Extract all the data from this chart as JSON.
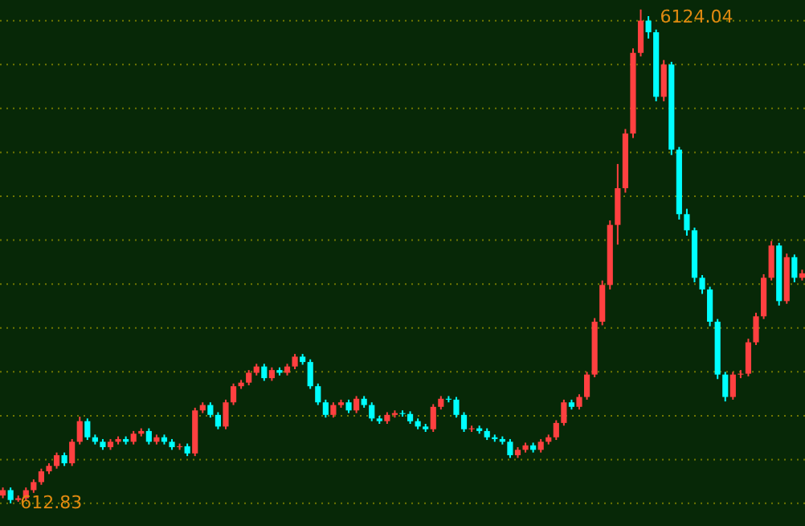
{
  "chart_data": {
    "type": "candlestick",
    "categories": [
      null,
      null,
      null,
      null,
      null,
      null,
      null,
      null,
      null,
      null,
      null,
      null,
      null,
      null,
      null,
      null,
      null,
      null,
      null,
      null,
      null,
      null,
      null,
      null,
      null,
      null,
      null,
      null,
      null,
      null,
      null,
      null,
      null,
      null,
      null,
      null,
      null,
      null,
      null,
      null,
      null,
      null,
      null,
      null,
      null,
      null,
      null,
      null,
      null,
      null,
      null,
      null,
      null,
      null,
      null,
      null,
      null,
      null,
      null,
      null,
      null,
      null,
      null,
      null,
      null,
      null,
      null,
      null,
      null,
      null,
      null,
      null,
      null,
      null,
      null,
      null,
      null,
      null,
      null,
      null,
      null,
      null,
      null,
      null,
      null,
      null,
      null,
      null,
      null,
      null,
      null,
      null,
      null,
      null,
      null,
      null,
      null,
      null,
      null,
      null,
      null,
      null,
      null,
      null,
      null
    ],
    "ohlc": [
      [
        700,
        790,
        670,
        760
      ],
      [
        760,
        790,
        612.83,
        650
      ],
      [
        650,
        700,
        630,
        670
      ],
      [
        670,
        790,
        640,
        760
      ],
      [
        760,
        880,
        730,
        850
      ],
      [
        850,
        1000,
        820,
        970
      ],
      [
        970,
        1060,
        940,
        1030
      ],
      [
        1030,
        1180,
        1000,
        1150
      ],
      [
        1150,
        1180,
        1030,
        1060
      ],
      [
        1060,
        1330,
        1030,
        1300
      ],
      [
        1300,
        1580,
        1270,
        1530
      ],
      [
        1530,
        1560,
        1320,
        1350
      ],
      [
        1350,
        1380,
        1270,
        1300
      ],
      [
        1300,
        1330,
        1210,
        1240
      ],
      [
        1240,
        1330,
        1210,
        1300
      ],
      [
        1300,
        1360,
        1270,
        1330
      ],
      [
        1330,
        1360,
        1270,
        1300
      ],
      [
        1300,
        1420,
        1270,
        1390
      ],
      [
        1390,
        1450,
        1360,
        1420
      ],
      [
        1420,
        1450,
        1270,
        1300
      ],
      [
        1300,
        1380,
        1270,
        1350
      ],
      [
        1350,
        1380,
        1270,
        1300
      ],
      [
        1300,
        1330,
        1210,
        1240
      ],
      [
        1240,
        1280,
        1210,
        1250
      ],
      [
        1250,
        1280,
        1140,
        1170
      ],
      [
        1170,
        1680,
        1140,
        1650
      ],
      [
        1650,
        1740,
        1620,
        1710
      ],
      [
        1710,
        1740,
        1570,
        1600
      ],
      [
        1600,
        1630,
        1440,
        1470
      ],
      [
        1470,
        1770,
        1440,
        1740
      ],
      [
        1740,
        1950,
        1710,
        1920
      ],
      [
        1920,
        1990,
        1890,
        1960
      ],
      [
        1960,
        2100,
        1930,
        2070
      ],
      [
        2070,
        2170,
        2040,
        2140
      ],
      [
        2140,
        2170,
        1980,
        2010
      ],
      [
        2010,
        2130,
        1980,
        2100
      ],
      [
        2100,
        2130,
        2040,
        2070
      ],
      [
        2070,
        2170,
        2040,
        2140
      ],
      [
        2140,
        2280,
        2110,
        2250
      ],
      [
        2250,
        2280,
        2160,
        2190
      ],
      [
        2190,
        2220,
        1890,
        1920
      ],
      [
        1920,
        1950,
        1710,
        1740
      ],
      [
        1740,
        1770,
        1570,
        1600
      ],
      [
        1600,
        1740,
        1570,
        1710
      ],
      [
        1710,
        1770,
        1680,
        1740
      ],
      [
        1740,
        1770,
        1620,
        1650
      ],
      [
        1650,
        1810,
        1620,
        1780
      ],
      [
        1780,
        1810,
        1680,
        1710
      ],
      [
        1710,
        1740,
        1530,
        1560
      ],
      [
        1560,
        1590,
        1500,
        1530
      ],
      [
        1530,
        1630,
        1500,
        1600
      ],
      [
        1600,
        1650,
        1570,
        1620
      ],
      [
        1620,
        1650,
        1580,
        1610
      ],
      [
        1610,
        1640,
        1500,
        1530
      ],
      [
        1530,
        1560,
        1440,
        1470
      ],
      [
        1470,
        1500,
        1410,
        1440
      ],
      [
        1440,
        1720,
        1410,
        1690
      ],
      [
        1690,
        1810,
        1660,
        1780
      ],
      [
        1780,
        1810,
        1740,
        1770
      ],
      [
        1770,
        1800,
        1570,
        1600
      ],
      [
        1600,
        1630,
        1410,
        1440
      ],
      [
        1440,
        1480,
        1410,
        1450
      ],
      [
        1450,
        1480,
        1390,
        1420
      ],
      [
        1420,
        1450,
        1320,
        1350
      ],
      [
        1350,
        1380,
        1300,
        1330
      ],
      [
        1330,
        1360,
        1270,
        1300
      ],
      [
        1300,
        1330,
        1120,
        1150
      ],
      [
        1150,
        1240,
        1120,
        1210
      ],
      [
        1210,
        1290,
        1180,
        1260
      ],
      [
        1260,
        1290,
        1180,
        1210
      ],
      [
        1210,
        1330,
        1180,
        1300
      ],
      [
        1300,
        1380,
        1270,
        1350
      ],
      [
        1350,
        1540,
        1320,
        1510
      ],
      [
        1510,
        1770,
        1480,
        1740
      ],
      [
        1740,
        1770,
        1660,
        1690
      ],
      [
        1690,
        1830,
        1660,
        1800
      ],
      [
        1800,
        2080,
        1770,
        2050
      ],
      [
        2050,
        2680,
        2020,
        2640
      ],
      [
        2640,
        3100,
        2600,
        3050
      ],
      [
        3050,
        3770,
        3000,
        3720
      ],
      [
        3720,
        4400,
        3500,
        4130
      ],
      [
        4130,
        4790,
        4080,
        4740
      ],
      [
        4740,
        5690,
        4690,
        5640
      ],
      [
        5640,
        6124.04,
        5600,
        6000
      ],
      [
        6000,
        6050,
        5800,
        5870
      ],
      [
        5870,
        5900,
        5100,
        5150
      ],
      [
        5150,
        5560,
        5100,
        5510
      ],
      [
        5510,
        5540,
        4500,
        4560
      ],
      [
        4560,
        4590,
        3780,
        3840
      ],
      [
        3840,
        3900,
        3600,
        3660
      ],
      [
        3660,
        3690,
        3080,
        3130
      ],
      [
        3130,
        3160,
        2950,
        3000
      ],
      [
        3000,
        3030,
        2590,
        2640
      ],
      [
        2640,
        2670,
        2000,
        2050
      ],
      [
        2050,
        2080,
        1750,
        1800
      ],
      [
        1800,
        2080,
        1770,
        2050
      ],
      [
        2050,
        2100,
        2010,
        2060
      ],
      [
        2060,
        2450,
        2030,
        2410
      ],
      [
        2410,
        2740,
        2380,
        2700
      ],
      [
        2700,
        3170,
        2670,
        3130
      ],
      [
        3130,
        3540,
        3100,
        3490
      ],
      [
        3490,
        3520,
        2820,
        2870
      ],
      [
        2870,
        3400,
        2840,
        3360
      ],
      [
        3360,
        3390,
        3080,
        3130
      ],
      [
        3130,
        3220,
        3100,
        3180
      ]
    ],
    "colors": [
      "#ff4040",
      "#00ffff",
      "#ff4040",
      "#ff4040",
      "#ff4040",
      "#ff4040",
      "#ff4040",
      "#ff4040",
      "#00ffff",
      "#ff4040",
      "#ff4040",
      "#00ffff",
      "#00ffff",
      "#00ffff",
      "#ff4040",
      "#ff4040",
      "#00ffff",
      "#ff4040",
      "#ff4040",
      "#00ffff",
      "#ff4040",
      "#00ffff",
      "#00ffff",
      "#ff4040",
      "#00ffff",
      "#ff4040",
      "#ff4040",
      "#00ffff",
      "#00ffff",
      "#ff4040",
      "#ff4040",
      "#ff4040",
      "#ff4040",
      "#ff4040",
      "#00ffff",
      "#ff4040",
      "#00ffff",
      "#ff4040",
      "#ff4040",
      "#00ffff",
      "#00ffff",
      "#00ffff",
      "#00ffff",
      "#ff4040",
      "#ff4040",
      "#00ffff",
      "#ff4040",
      "#00ffff",
      "#00ffff",
      "#00ffff",
      "#ff4040",
      "#ff4040",
      "#00ffff",
      "#00ffff",
      "#00ffff",
      "#00ffff",
      "#ff4040",
      "#ff4040",
      "#00ffff",
      "#00ffff",
      "#00ffff",
      "#ff4040",
      "#00ffff",
      "#00ffff",
      "#00ffff",
      "#00ffff",
      "#00ffff",
      "#ff4040",
      "#ff4040",
      "#00ffff",
      "#ff4040",
      "#ff4040",
      "#ff4040",
      "#ff4040",
      "#00ffff",
      "#ff4040",
      "#ff4040",
      "#ff4040",
      "#ff4040",
      "#ff4040",
      "#ff4040",
      "#ff4040",
      "#ff4040",
      "#ff4040",
      "#00ffff",
      "#00ffff",
      "#ff4040",
      "#00ffff",
      "#00ffff",
      "#00ffff",
      "#00ffff",
      "#00ffff",
      "#00ffff",
      "#00ffff",
      "#00ffff",
      "#ff4040",
      "#ff4040",
      "#ff4040",
      "#ff4040",
      "#ff4040",
      "#ff4040",
      "#00ffff",
      "#ff4040",
      "#00ffff",
      "#ff4040"
    ],
    "ylim": [
      360,
      6230
    ],
    "yticks": [
      {
        "value": 612.83,
        "label": null
      },
      {
        "value": 1100,
        "label": null
      },
      {
        "value": 1590,
        "label": null
      },
      {
        "value": 2080,
        "label": null
      },
      {
        "value": 2570,
        "label": null
      },
      {
        "value": 3060,
        "label": null
      },
      {
        "value": 3550,
        "label": null
      },
      {
        "value": 4040,
        "label": null
      },
      {
        "value": 4530,
        "label": null
      },
      {
        "value": 5020,
        "label": null
      },
      {
        "value": 5510,
        "label": null
      },
      {
        "value": 6000,
        "label": null
      }
    ],
    "grid": "y",
    "annotations": [
      "6124.04",
      "612.83"
    ]
  }
}
